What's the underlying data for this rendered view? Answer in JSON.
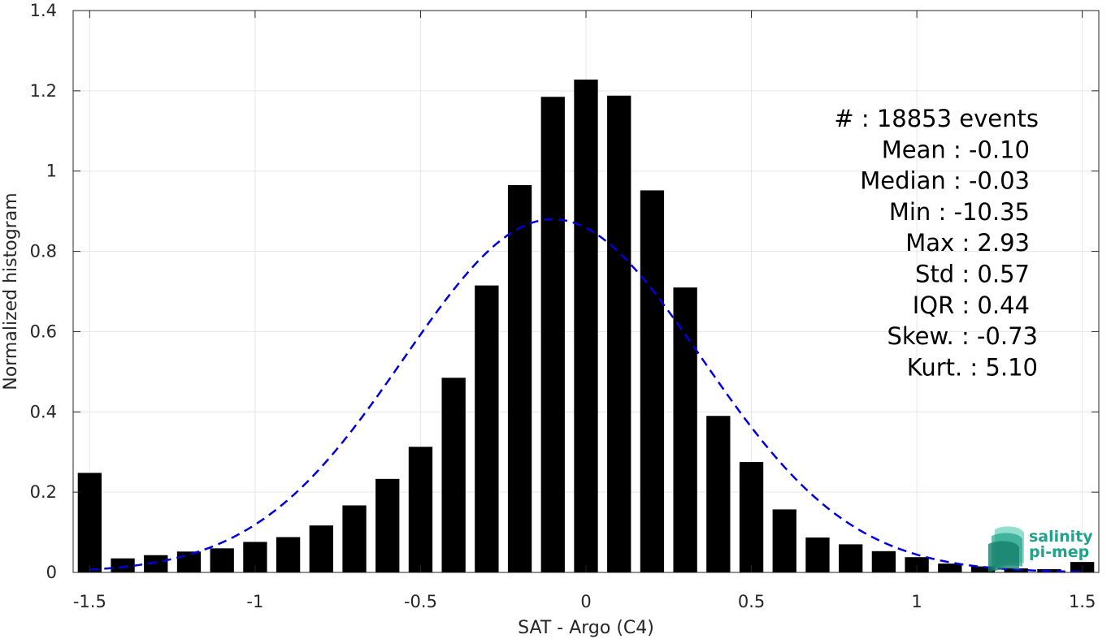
{
  "chart_data": {
    "type": "bar",
    "xlabel": "SAT - Argo (C4)",
    "ylabel": "Normalized histogram",
    "xlim": [
      -1.55,
      1.55
    ],
    "ylim": [
      0,
      1.4
    ],
    "x_ticks": [
      -1.5,
      -1,
      -0.5,
      0,
      0.5,
      1,
      1.5
    ],
    "x_tick_labels": [
      "-1.5",
      "-1",
      "-0.5",
      "0",
      "0.5",
      "1",
      "1.5"
    ],
    "y_ticks": [
      0,
      0.2,
      0.4,
      0.6,
      0.8,
      1,
      1.2,
      1.4
    ],
    "y_tick_labels": [
      "0",
      "0.2",
      "0.4",
      "0.6",
      "0.8",
      "1",
      "1.2",
      "1.4"
    ],
    "grid": true,
    "bars": {
      "x": [
        -1.5,
        -1.4,
        -1.3,
        -1.2,
        -1.1,
        -1.0,
        -0.9,
        -0.8,
        -0.7,
        -0.6,
        -0.5,
        -0.4,
        -0.3,
        -0.2,
        -0.1,
        0.0,
        0.1,
        0.2,
        0.3,
        0.4,
        0.5,
        0.6,
        0.7,
        0.8,
        0.9,
        1.0,
        1.1,
        1.2,
        1.3,
        1.4,
        1.5
      ],
      "values": [
        0.248,
        0.035,
        0.043,
        0.052,
        0.06,
        0.076,
        0.088,
        0.117,
        0.167,
        0.233,
        0.313,
        0.485,
        0.715,
        0.965,
        1.185,
        1.228,
        1.188,
        0.952,
        0.71,
        0.39,
        0.275,
        0.157,
        0.087,
        0.07,
        0.053,
        0.038,
        0.022,
        0.015,
        0.01,
        0.008,
        0.026
      ],
      "color": "#000000"
    },
    "fit_curve": {
      "style": "dashed",
      "color": "#0000dd",
      "mean": -0.1,
      "std": 0.45,
      "peak": 0.88,
      "x_range": [
        -1.5,
        1.5
      ]
    },
    "stats_lines": [
      "#  : 18853 events",
      "Mean : -0.10",
      "Median : -0.03",
      "Min : -10.35",
      "Max : 2.93",
      "Std : 0.57",
      "IQR : 0.44",
      "Skew. : -0.73",
      "Kurt. : 5.10"
    ]
  },
  "logo": {
    "line1": "salinity",
    "line2": "pi-mep",
    "color": "#1fa38a"
  }
}
